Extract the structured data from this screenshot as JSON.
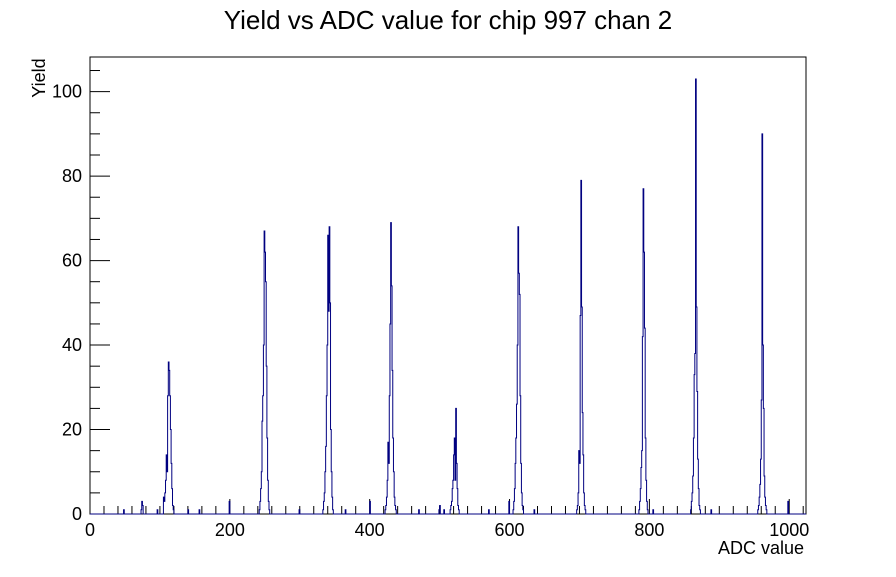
{
  "chart_data": {
    "type": "histogram",
    "title": "Yield vs ADC value for chip 997 chan 2",
    "xlabel": "ADC value",
    "ylabel": "Yield",
    "xlim": [
      0,
      1024
    ],
    "ylim": [
      0,
      108.2
    ],
    "grid": false,
    "legend": "none",
    "x_ticks": [
      0,
      200,
      400,
      600,
      800,
      1000
    ],
    "y_ticks": [
      0,
      20,
      40,
      60,
      80,
      100
    ],
    "line_color": "#000080",
    "series": [
      {
        "points": [
          [
            48,
            1
          ],
          [
            73,
            1
          ],
          [
            74,
            3
          ],
          [
            75,
            2
          ],
          [
            96,
            1
          ],
          [
            105,
            4
          ],
          [
            106,
            3
          ],
          [
            107,
            5
          ],
          [
            108,
            8
          ],
          [
            109,
            14
          ],
          [
            110,
            10
          ],
          [
            111,
            28
          ],
          [
            112,
            36
          ],
          [
            113,
            34
          ],
          [
            114,
            28
          ],
          [
            115,
            20
          ],
          [
            116,
            12
          ],
          [
            117,
            6
          ],
          [
            118,
            2
          ],
          [
            119,
            1
          ],
          [
            140,
            1
          ],
          [
            156,
            1
          ],
          [
            199,
            3
          ],
          [
            242,
            1
          ],
          [
            243,
            3
          ],
          [
            244,
            6
          ],
          [
            245,
            10
          ],
          [
            246,
            22
          ],
          [
            247,
            28
          ],
          [
            248,
            40
          ],
          [
            249,
            67
          ],
          [
            250,
            62
          ],
          [
            251,
            55
          ],
          [
            252,
            35
          ],
          [
            253,
            18
          ],
          [
            254,
            8
          ],
          [
            255,
            3
          ],
          [
            256,
            1
          ],
          [
            299,
            1
          ],
          [
            333,
            1
          ],
          [
            334,
            3
          ],
          [
            335,
            5
          ],
          [
            336,
            10
          ],
          [
            337,
            16
          ],
          [
            338,
            28
          ],
          [
            339,
            40
          ],
          [
            340,
            66
          ],
          [
            341,
            48
          ],
          [
            342,
            68
          ],
          [
            343,
            50
          ],
          [
            344,
            20
          ],
          [
            345,
            10
          ],
          [
            346,
            4
          ],
          [
            347,
            1
          ],
          [
            365,
            1
          ],
          [
            400,
            3
          ],
          [
            422,
            1
          ],
          [
            423,
            2
          ],
          [
            424,
            4
          ],
          [
            425,
            8
          ],
          [
            426,
            17
          ],
          [
            427,
            12
          ],
          [
            428,
            28
          ],
          [
            429,
            45
          ],
          [
            430,
            69
          ],
          [
            431,
            54
          ],
          [
            432,
            34
          ],
          [
            433,
            18
          ],
          [
            434,
            10
          ],
          [
            435,
            4
          ],
          [
            436,
            2
          ],
          [
            437,
            1
          ],
          [
            470,
            1
          ],
          [
            499,
            1
          ],
          [
            500,
            2
          ],
          [
            506,
            1
          ],
          [
            515,
            1
          ],
          [
            516,
            2
          ],
          [
            517,
            3
          ],
          [
            518,
            6
          ],
          [
            519,
            8
          ],
          [
            520,
            14
          ],
          [
            521,
            18
          ],
          [
            522,
            8
          ],
          [
            523,
            25
          ],
          [
            524,
            12
          ],
          [
            525,
            6
          ],
          [
            526,
            2
          ],
          [
            527,
            1
          ],
          [
            570,
            1
          ],
          [
            599,
            3
          ],
          [
            605,
            1
          ],
          [
            606,
            3
          ],
          [
            607,
            6
          ],
          [
            608,
            12
          ],
          [
            609,
            18
          ],
          [
            610,
            26
          ],
          [
            611,
            40
          ],
          [
            612,
            68
          ],
          [
            613,
            57
          ],
          [
            614,
            52
          ],
          [
            615,
            28
          ],
          [
            616,
            12
          ],
          [
            617,
            5
          ],
          [
            618,
            2
          ],
          [
            619,
            1
          ],
          [
            635,
            1
          ],
          [
            696,
            1
          ],
          [
            697,
            2
          ],
          [
            698,
            5
          ],
          [
            699,
            15
          ],
          [
            700,
            12
          ],
          [
            701,
            47
          ],
          [
            702,
            79
          ],
          [
            703,
            49
          ],
          [
            704,
            24
          ],
          [
            705,
            14
          ],
          [
            706,
            5
          ],
          [
            707,
            2
          ],
          [
            708,
            1
          ],
          [
            785,
            1
          ],
          [
            786,
            3
          ],
          [
            787,
            6
          ],
          [
            788,
            11
          ],
          [
            789,
            15
          ],
          [
            790,
            42
          ],
          [
            791,
            77
          ],
          [
            792,
            62
          ],
          [
            793,
            44
          ],
          [
            794,
            18
          ],
          [
            795,
            8
          ],
          [
            796,
            3
          ],
          [
            797,
            1
          ],
          [
            805,
            1
          ],
          [
            859,
            1
          ],
          [
            860,
            3
          ],
          [
            861,
            5
          ],
          [
            862,
            9
          ],
          [
            863,
            18
          ],
          [
            864,
            33
          ],
          [
            865,
            38
          ],
          [
            866,
            103
          ],
          [
            867,
            49
          ],
          [
            868,
            29
          ],
          [
            869,
            13
          ],
          [
            870,
            6
          ],
          [
            871,
            2
          ],
          [
            872,
            1
          ],
          [
            888,
            1
          ],
          [
            955,
            1
          ],
          [
            956,
            2
          ],
          [
            957,
            4
          ],
          [
            958,
            7
          ],
          [
            959,
            13
          ],
          [
            960,
            27
          ],
          [
            961,
            90
          ],
          [
            962,
            40
          ],
          [
            963,
            25
          ],
          [
            964,
            9
          ],
          [
            965,
            4
          ],
          [
            966,
            2
          ],
          [
            967,
            1
          ],
          [
            998,
            3
          ]
        ]
      }
    ]
  }
}
